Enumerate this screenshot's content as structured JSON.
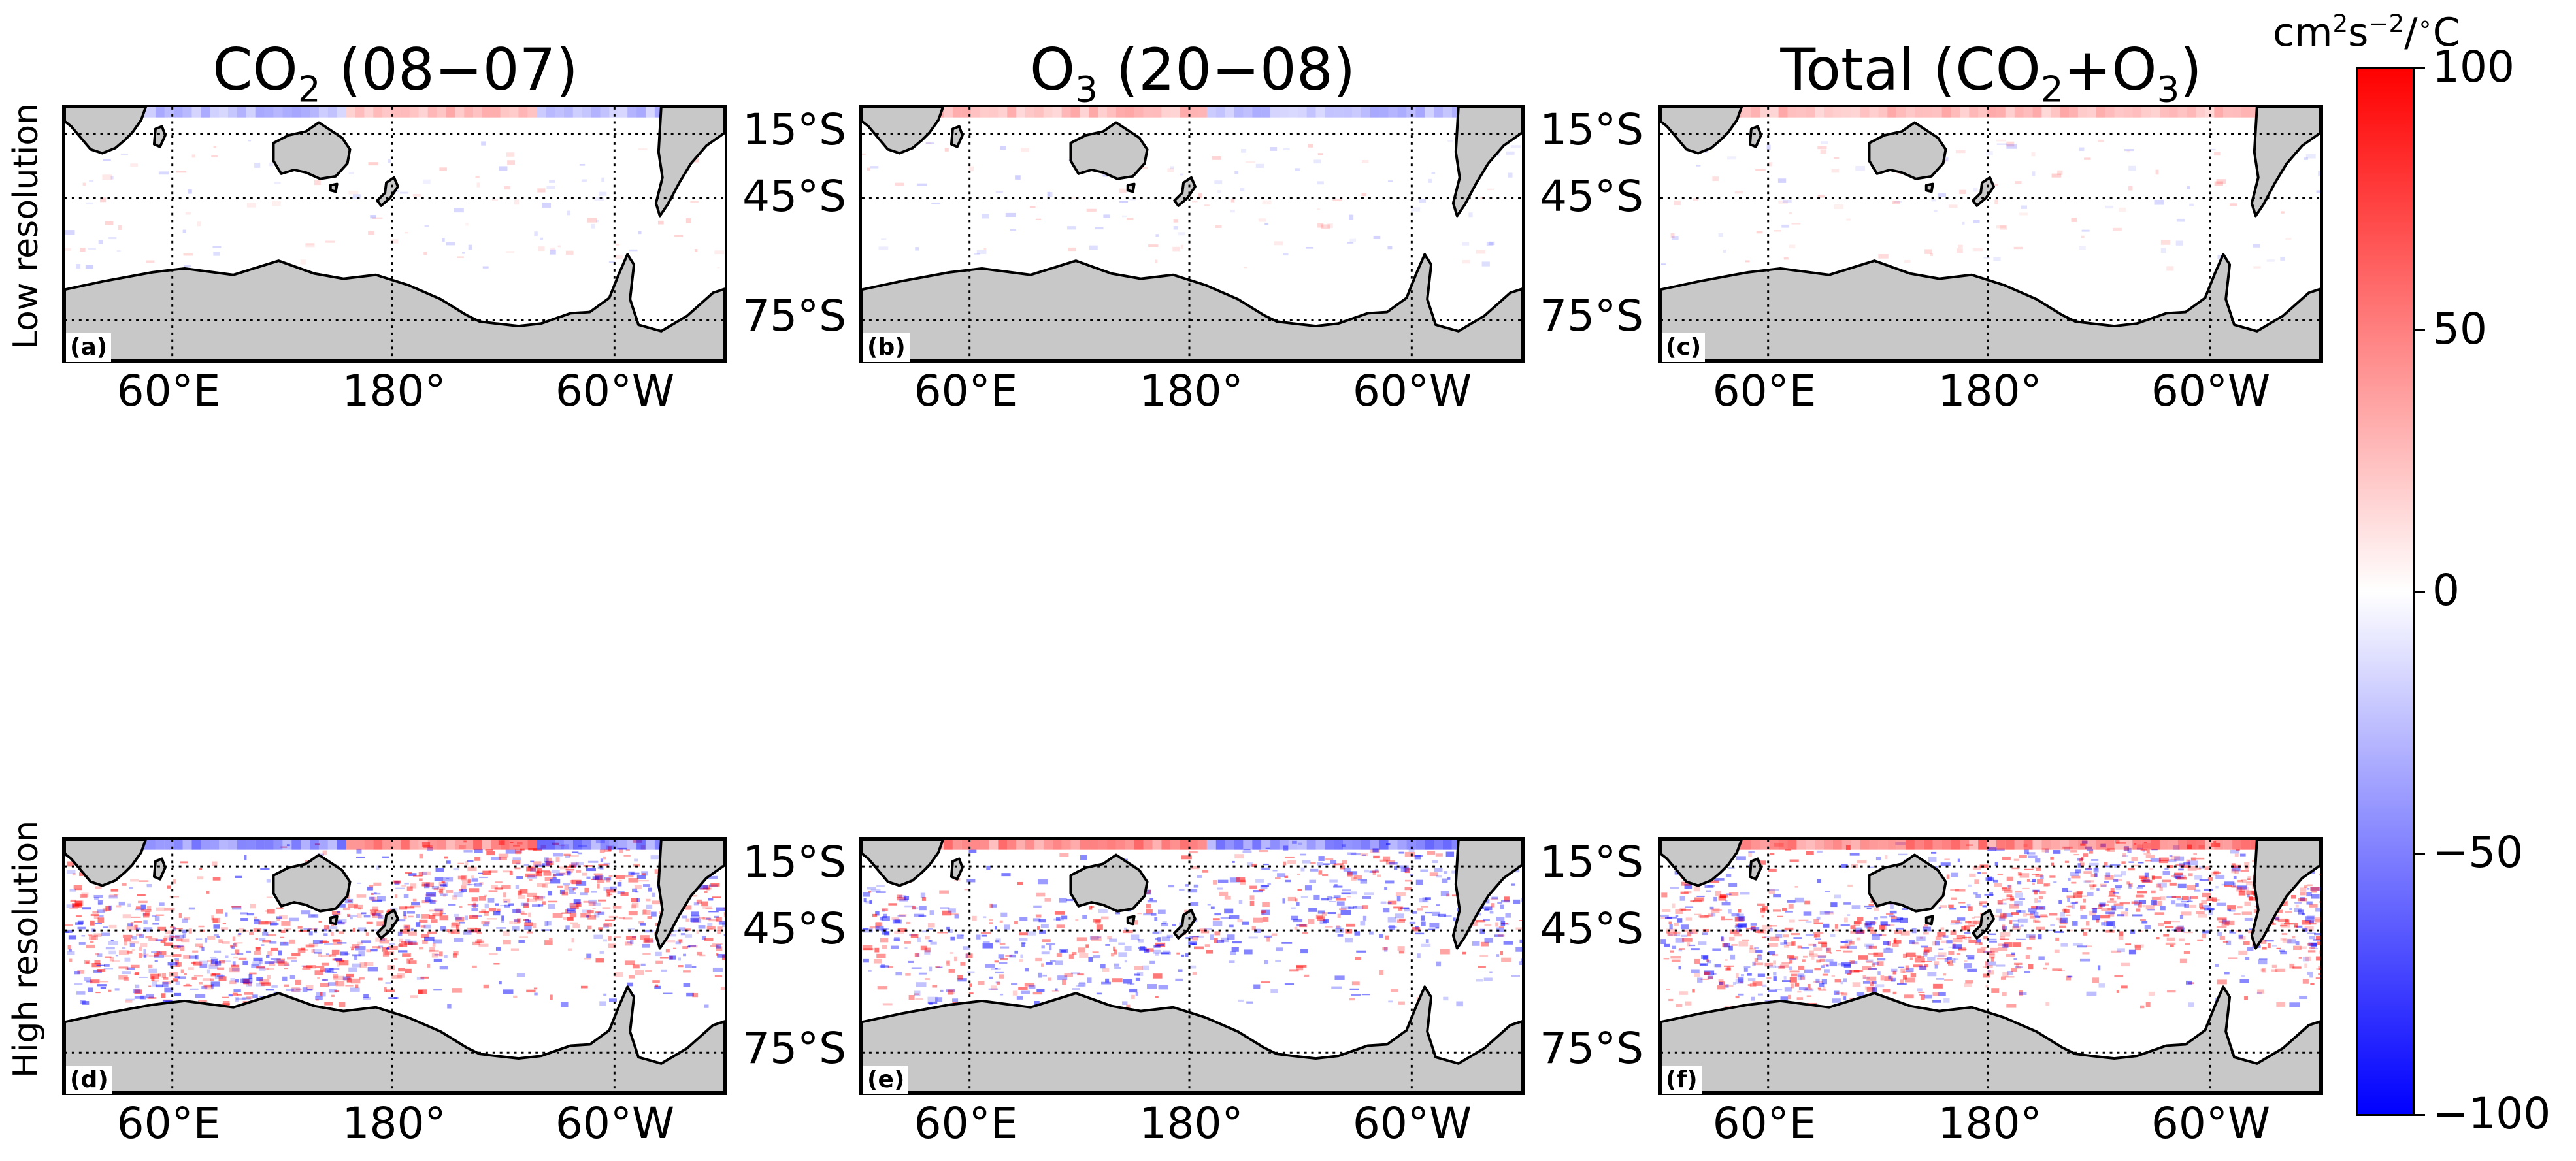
{
  "column_titles": [
    {
      "pre": "CO",
      "sub": "2",
      "post": " (08−07)"
    },
    {
      "pre": "O",
      "sub": "3",
      "post": " (20−08)"
    },
    {
      "pre": "Total (CO",
      "sub": "2",
      "post": "+O",
      "sub2": "3",
      "post2": ")"
    }
  ],
  "row_labels": [
    "Low resolution",
    "High resolution"
  ],
  "panel_tags": [
    "(a)",
    "(b)",
    "(c)",
    "(d)",
    "(e)",
    "(f)"
  ],
  "lat_ticks": [
    "15°S",
    "45°S",
    "75°S"
  ],
  "lon_ticks": [
    "60°E",
    "180°",
    "60°W"
  ],
  "colorbar": {
    "units": {
      "a": "cm",
      "b": "2",
      "c": "s",
      "d": "−2",
      "e": "/",
      "f": "∘",
      "g": "C"
    },
    "ticks": [
      "100",
      "50",
      "0",
      "−50",
      "−100"
    ],
    "range": [
      -100,
      100
    ],
    "colormap": "bwr",
    "min_color": "#0000ff",
    "mid_color": "#ffffff",
    "max_color": "#ff0000"
  },
  "map_style": {
    "land_color": "#c8c8c8",
    "coast_color": "#000000",
    "ocean_color": "#ffffff"
  },
  "panels": [
    {
      "tag": "(a)",
      "resolution": "low",
      "field": "CO2",
      "anomaly_intensity": "weak"
    },
    {
      "tag": "(b)",
      "resolution": "low",
      "field": "O3",
      "anomaly_intensity": "weak"
    },
    {
      "tag": "(c)",
      "resolution": "low",
      "field": "Total",
      "anomaly_intensity": "weak"
    },
    {
      "tag": "(d)",
      "resolution": "high",
      "field": "CO2",
      "anomaly_intensity": "strong"
    },
    {
      "tag": "(e)",
      "resolution": "high",
      "field": "O3",
      "anomaly_intensity": "moderate"
    },
    {
      "tag": "(f)",
      "resolution": "high",
      "field": "Total",
      "anomaly_intensity": "strong"
    }
  ]
}
